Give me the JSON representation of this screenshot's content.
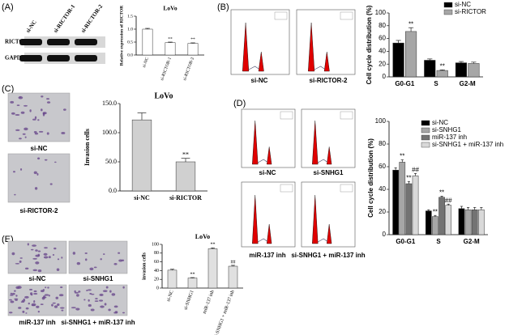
{
  "figure": {
    "panel_labels": [
      "(A)",
      "(B)",
      "(C)",
      "(D)",
      "(E)"
    ],
    "blot": {
      "lanes": [
        "si-NC",
        "si-RICTOR-1",
        "si-RICTOR-2"
      ],
      "rows": [
        "RICTOR",
        "GAPDH"
      ]
    },
    "flow_b": [
      "si-NC",
      "si-RICTOR-2"
    ],
    "images_c": [
      "si-NC",
      "si-RICTOR-2"
    ],
    "flow_d": [
      "si-NC",
      "si-SNHG1",
      "miR-137 inh",
      "si-SNHG1 + miR-137 inh"
    ],
    "images_e": [
      "si-NC",
      "si-SNHG1",
      "miR-137 inh",
      "si-SNHG1 + miR-137 inh"
    ]
  },
  "chart_data": [
    {
      "type": "bar",
      "title": "LoVo",
      "y_label": "Relative expression of RICTOR",
      "categories": [
        "si-NC",
        "si-RICTOR-1",
        "si-RICTOR-2"
      ],
      "values": [
        1.0,
        0.48,
        0.45
      ],
      "errors": [
        0.03,
        0.02,
        0.02
      ],
      "significance": [
        null,
        "**",
        "**"
      ],
      "color": "#ffffff",
      "ylim": [
        0,
        1.5
      ],
      "yticks": [
        {
          "value": 0,
          "label": "0.0"
        },
        {
          "value": 0.5,
          "label": "0.5"
        },
        {
          "value": 1.0,
          "label": "1.0"
        },
        {
          "value": 1.5,
          "label": "1.5"
        }
      ]
    },
    {
      "type": "bar",
      "y_label": "Cell cycle distribution (%)",
      "categories": [
        "G0-G1",
        "S",
        "G2-M"
      ],
      "series": [
        {
          "name": "si-NC",
          "color": "#000000",
          "values": [
            53,
            26,
            22
          ],
          "errors": [
            4,
            2,
            2
          ],
          "significance": [
            null,
            null,
            null
          ]
        },
        {
          "name": "si-RICTOR",
          "color": "#a6a6a6",
          "values": [
            71,
            10,
            21
          ],
          "errors": [
            6,
            1,
            2
          ],
          "significance": [
            "**",
            "**",
            null
          ]
        }
      ],
      "ylim": [
        0,
        100
      ],
      "yticks": [
        0,
        20,
        40,
        60,
        80,
        100
      ]
    },
    {
      "type": "bar",
      "title": "LoVo",
      "y_label": "Invasion cells",
      "categories": [
        "si-NC",
        "si-RICTOR"
      ],
      "values": [
        122,
        50
      ],
      "errors": [
        12,
        6
      ],
      "significance": [
        null,
        "**"
      ],
      "color": "#d0d0d0",
      "ylim": [
        0,
        150
      ],
      "yticks": [
        {
          "value": 0,
          "label": "0.0"
        },
        {
          "value": 50,
          "label": "50.0"
        },
        {
          "value": 100,
          "label": "100.0"
        },
        {
          "value": 150,
          "label": "150.0"
        }
      ]
    },
    {
      "type": "bar",
      "y_label": "Cell cycle distribution (%)",
      "categories": [
        "G0-G1",
        "S",
        "G2-M"
      ],
      "series": [
        {
          "name": "si-NC",
          "color": "#000000",
          "values": [
            57,
            21,
            23
          ],
          "errors": [
            2,
            1,
            2
          ],
          "significance": [
            null,
            null,
            null
          ]
        },
        {
          "name": "si-SNHG1",
          "color": "#a6a6a6",
          "values": [
            64,
            16,
            22
          ],
          "errors": [
            2,
            1,
            2
          ],
          "significance": [
            "**",
            "**",
            null
          ]
        },
        {
          "name": "miR-137 inh",
          "color": "#737373",
          "values": [
            45,
            33,
            22
          ],
          "errors": [
            2,
            1,
            2
          ],
          "significance": [
            "**",
            "**",
            null
          ]
        },
        {
          "name": "si-SNHG1 + miR-137 inh",
          "color": "#d9d9d9",
          "values": [
            52,
            26,
            22
          ],
          "errors": [
            2,
            1,
            2
          ],
          "significance": [
            "##",
            "##",
            null
          ]
        }
      ],
      "ylim": [
        0,
        100
      ],
      "yticks": [
        0,
        20,
        40,
        60,
        80,
        100
      ]
    },
    {
      "type": "bar",
      "title": "LoVo",
      "y_label": "invasion cells",
      "categories": [
        "si-NC",
        "si-SNHG1",
        "miR-137 inh",
        "si-SNHG1 + miR-137 inh"
      ],
      "values": [
        41,
        23,
        90,
        50
      ],
      "errors": [
        2,
        1,
        2,
        2
      ],
      "significance": [
        null,
        "**",
        "**",
        "##"
      ],
      "color": "#e0e0e0",
      "ylim": [
        0,
        100
      ],
      "yticks": [
        0,
        20,
        40,
        60,
        80,
        100
      ]
    }
  ]
}
